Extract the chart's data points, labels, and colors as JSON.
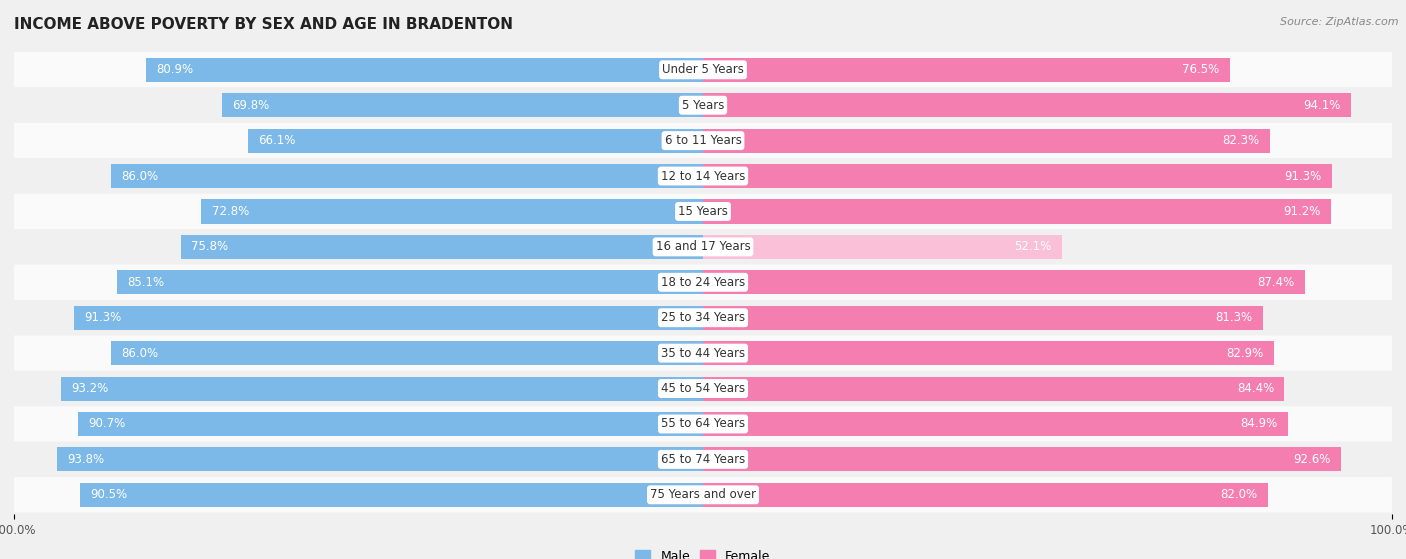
{
  "title": "INCOME ABOVE POVERTY BY SEX AND AGE IN BRADENTON",
  "source": "Source: ZipAtlas.com",
  "categories": [
    "Under 5 Years",
    "5 Years",
    "6 to 11 Years",
    "12 to 14 Years",
    "15 Years",
    "16 and 17 Years",
    "18 to 24 Years",
    "25 to 34 Years",
    "35 to 44 Years",
    "45 to 54 Years",
    "55 to 64 Years",
    "65 to 74 Years",
    "75 Years and over"
  ],
  "male_values": [
    80.9,
    69.8,
    66.1,
    86.0,
    72.8,
    75.8,
    85.1,
    91.3,
    86.0,
    93.2,
    90.7,
    93.8,
    90.5
  ],
  "female_values": [
    76.5,
    94.1,
    82.3,
    91.3,
    91.2,
    52.1,
    87.4,
    81.3,
    82.9,
    84.4,
    84.9,
    92.6,
    82.0
  ],
  "male_color": "#7cb9e8",
  "female_color": "#f47eb0",
  "female_color_light": "#f9c0d8",
  "row_color_odd": "#f0f0f0",
  "row_color_even": "#fafafa",
  "background_color": "#f0f0f0",
  "label_bg_color": "#ffffff",
  "title_fontsize": 11,
  "label_fontsize": 8.5,
  "value_fontsize": 8.5,
  "tick_fontsize": 8.5,
  "max_value": 100.0
}
